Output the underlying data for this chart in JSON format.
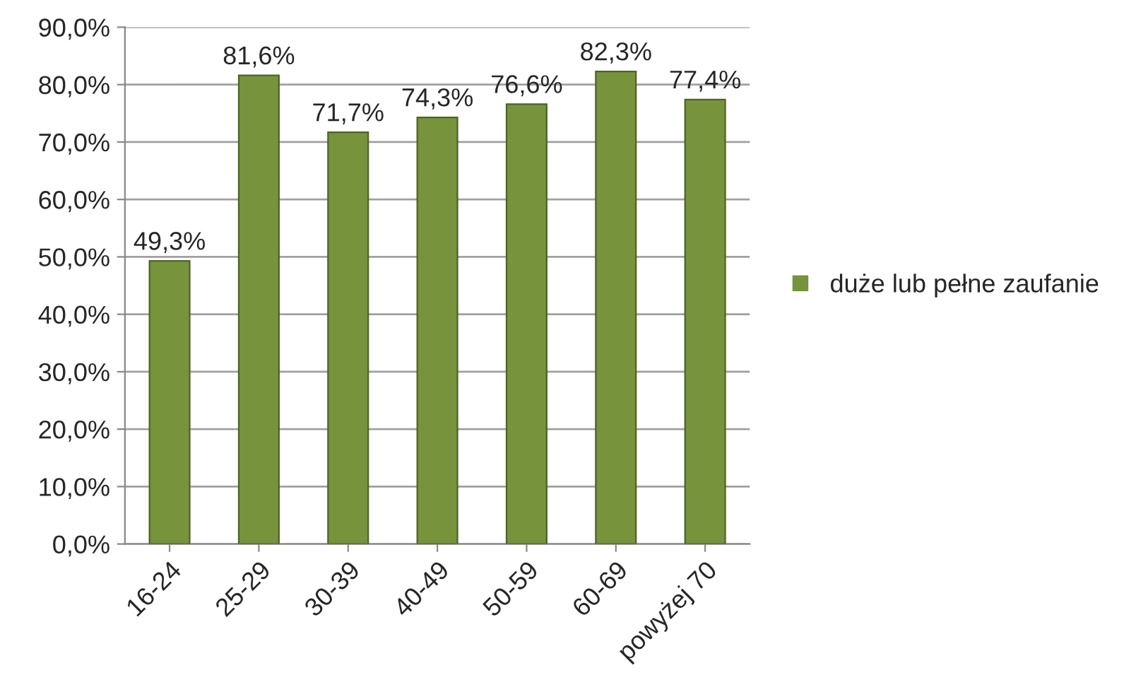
{
  "chart_data": {
    "type": "bar",
    "categories": [
      "16-24",
      "25-29",
      "30-39",
      "40-49",
      "50-59",
      "60-69",
      "powyżej 70"
    ],
    "series": [
      {
        "name": "duże lub pełne zaufanie",
        "color": "#77933c",
        "values": [
          49.3,
          81.6,
          71.7,
          74.3,
          76.6,
          82.3,
          77.4
        ],
        "value_labels": [
          "49,3%",
          "81,6%",
          "71,7%",
          "74,3%",
          "76,6%",
          "82,3%",
          "77,4%"
        ]
      }
    ],
    "ylim": [
      0,
      90
    ],
    "yticks": [
      {
        "value": 0,
        "label": "0,0%"
      },
      {
        "value": 10,
        "label": "10,0%"
      },
      {
        "value": 20,
        "label": "20,0%"
      },
      {
        "value": 30,
        "label": "30,0%"
      },
      {
        "value": 40,
        "label": "40,0%"
      },
      {
        "value": 50,
        "label": "50,0%"
      },
      {
        "value": 60,
        "label": "60,0%"
      },
      {
        "value": 70,
        "label": "70,0%"
      },
      {
        "value": 80,
        "label": "80,0%"
      },
      {
        "value": 90,
        "label": "90,0%"
      }
    ],
    "grid": "y",
    "legend": "right"
  }
}
